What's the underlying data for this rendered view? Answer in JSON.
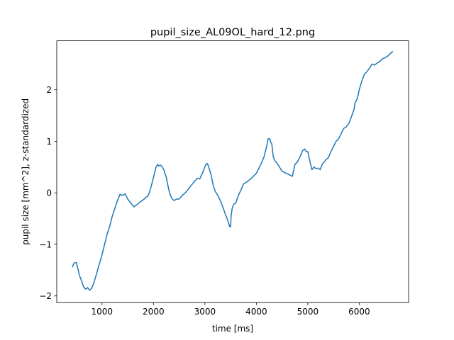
{
  "chart_data": {
    "type": "line",
    "title": "pupil_size_AL09OL_hard_12.png",
    "xlabel": "time [ms]",
    "ylabel": "pupil size [mm^2], z-standardized",
    "xlim": [
      120,
      6960
    ],
    "ylim": [
      -2.13,
      2.95
    ],
    "xticks": [
      1000,
      2000,
      3000,
      4000,
      5000,
      6000
    ],
    "yticks": [
      -2,
      -1,
      0,
      1,
      2
    ],
    "grid": false,
    "line_color": "#1f77b4",
    "series": [
      {
        "x": [
          420,
          460,
          500,
          530,
          560,
          600,
          640,
          680,
          720,
          760,
          800,
          840,
          900,
          1000,
          1100,
          1150,
          1200,
          1250,
          1300,
          1350,
          1400,
          1450,
          1500,
          1560,
          1620,
          1680,
          1750,
          1820,
          1900,
          1950,
          2000,
          2050,
          2080,
          2100,
          2130,
          2160,
          2200,
          2250,
          2300,
          2350,
          2400,
          2450,
          2500,
          2560,
          2620,
          2700,
          2780,
          2850,
          2900,
          2950,
          2990,
          3020,
          3050,
          3080,
          3120,
          3160,
          3200,
          3250,
          3300,
          3350,
          3400,
          3450,
          3480,
          3500,
          3510,
          3530,
          3560,
          3600,
          3650,
          3700,
          3750,
          3800,
          3900,
          4000,
          4100,
          4150,
          4200,
          4230,
          4260,
          4280,
          4300,
          4330,
          4360,
          4400,
          4450,
          4500,
          4600,
          4700,
          4750,
          4800,
          4850,
          4900,
          4940,
          4970,
          5000,
          5040,
          5080,
          5120,
          5160,
          5200,
          5240,
          5280,
          5320,
          5360,
          5400,
          5450,
          5500,
          5550,
          5600,
          5650,
          5700,
          5750,
          5800,
          5850,
          5900,
          5920,
          5950,
          5980,
          6000,
          6030,
          6060,
          6100,
          6150,
          6200,
          6250,
          6300,
          6350,
          6400,
          6450,
          6500,
          6550,
          6600,
          6630,
          6650
        ],
        "y": [
          -1.44,
          -1.36,
          -1.35,
          -1.47,
          -1.6,
          -1.7,
          -1.82,
          -1.87,
          -1.84,
          -1.89,
          -1.85,
          -1.75,
          -1.55,
          -1.2,
          -0.8,
          -0.65,
          -0.45,
          -0.3,
          -0.15,
          -0.03,
          -0.05,
          -0.02,
          -0.12,
          -0.2,
          -0.27,
          -0.23,
          -0.17,
          -0.12,
          -0.05,
          0.1,
          0.3,
          0.5,
          0.55,
          0.52,
          0.54,
          0.52,
          0.45,
          0.3,
          0.05,
          -0.1,
          -0.15,
          -0.12,
          -0.12,
          -0.05,
          0.0,
          0.1,
          0.2,
          0.28,
          0.27,
          0.38,
          0.48,
          0.55,
          0.57,
          0.48,
          0.35,
          0.15,
          0.03,
          -0.05,
          -0.15,
          -0.28,
          -0.42,
          -0.55,
          -0.65,
          -0.66,
          -0.45,
          -0.3,
          -0.22,
          -0.2,
          -0.05,
          0.05,
          0.17,
          0.2,
          0.28,
          0.38,
          0.58,
          0.7,
          0.9,
          1.05,
          1.05,
          0.98,
          0.95,
          0.7,
          0.62,
          0.58,
          0.5,
          0.42,
          0.37,
          0.32,
          0.55,
          0.6,
          0.7,
          0.82,
          0.85,
          0.8,
          0.8,
          0.62,
          0.45,
          0.5,
          0.47,
          0.48,
          0.45,
          0.55,
          0.6,
          0.65,
          0.68,
          0.8,
          0.9,
          1.0,
          1.05,
          1.15,
          1.25,
          1.28,
          1.35,
          1.48,
          1.62,
          1.75,
          1.8,
          1.9,
          2.0,
          2.1,
          2.2,
          2.3,
          2.35,
          2.42,
          2.5,
          2.48,
          2.52,
          2.55,
          2.6,
          2.62,
          2.65,
          2.7,
          2.72,
          2.75
        ]
      }
    ]
  }
}
